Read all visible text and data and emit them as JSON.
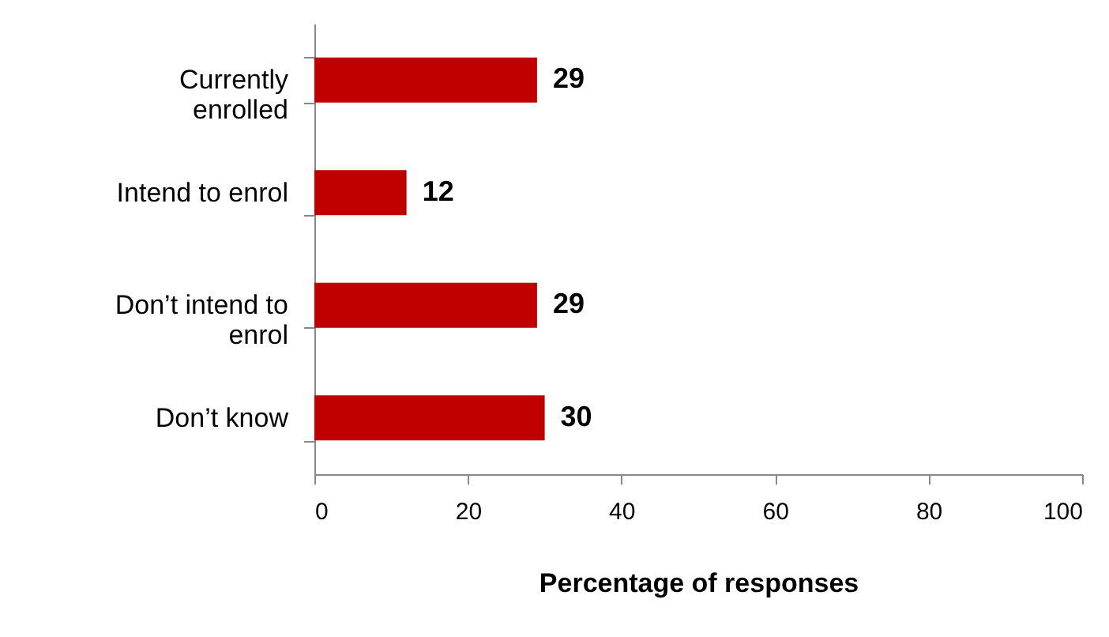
{
  "chart_data": {
    "type": "bar",
    "orientation": "horizontal",
    "xlabel": "Percentage of responses",
    "categories": [
      "Currently enrolled",
      "Intend to enrol",
      "Don’t intend to enrol",
      "Don’t know"
    ],
    "values": [
      29,
      12,
      29,
      30
    ],
    "color": "#c00000",
    "xlim": [
      0,
      100
    ],
    "xticks": [
      0,
      20,
      40,
      60,
      80,
      100
    ],
    "grid": false,
    "data_labels": true
  }
}
